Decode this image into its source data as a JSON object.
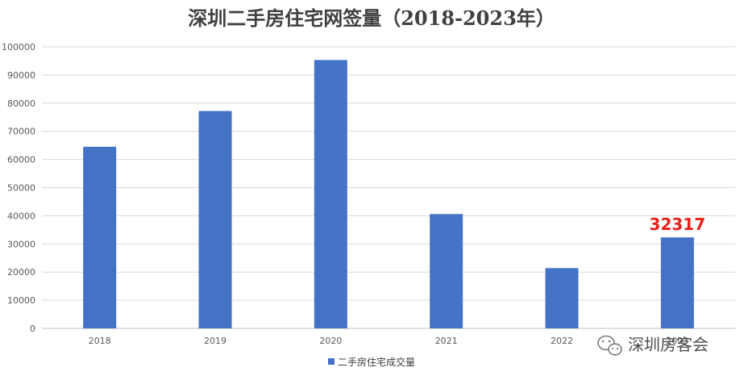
{
  "chart_data": {
    "type": "bar",
    "title": "深圳二手房住宅网签量（2018-2023年）",
    "categories": [
      "2018",
      "2019",
      "2020",
      "2021",
      "2022",
      "2023"
    ],
    "series": [
      {
        "name": "二手房住宅成交量",
        "values": [
          64500,
          77200,
          95300,
          40600,
          21400,
          32317
        ],
        "color": "#4472c4"
      }
    ],
    "ylim": [
      0,
      100000
    ],
    "yticks": [
      "0",
      "10000",
      "20000",
      "30000",
      "40000",
      "50000",
      "60000",
      "70000",
      "80000",
      "90000",
      "100000"
    ],
    "xlabel": "",
    "ylabel": "",
    "grid": true,
    "legend_position": "bottom",
    "annotations": [
      {
        "category": "2023",
        "text": "32317",
        "color": "#e8201a"
      }
    ]
  },
  "watermark": {
    "text": "深圳房客会",
    "icon": "wechat-icon"
  }
}
